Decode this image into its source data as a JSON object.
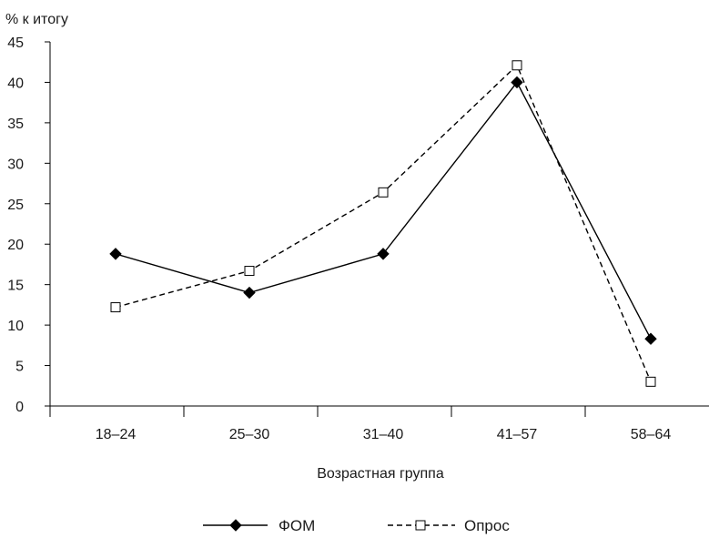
{
  "chart_data": {
    "type": "line",
    "ylabel": "% к итогу",
    "xlabel": "Возрастная группа",
    "categories": [
      "18–24",
      "25–30",
      "31–40",
      "41–57",
      "58–64"
    ],
    "ylim": [
      0,
      45
    ],
    "yticks": [
      0,
      5,
      10,
      15,
      20,
      25,
      30,
      35,
      40,
      45
    ],
    "grid": false,
    "legend_position": "bottom-center",
    "series": [
      {
        "name": "ФОМ",
        "values": [
          18.8,
          14.0,
          18.8,
          40.0,
          8.3
        ],
        "marker": "filled-diamond",
        "line_style": "solid",
        "color": "#000000"
      },
      {
        "name": "Опрос",
        "values": [
          12.2,
          16.7,
          26.4,
          42.1,
          3.0
        ],
        "marker": "open-square",
        "line_style": "dashed",
        "color": "#000000"
      }
    ]
  }
}
